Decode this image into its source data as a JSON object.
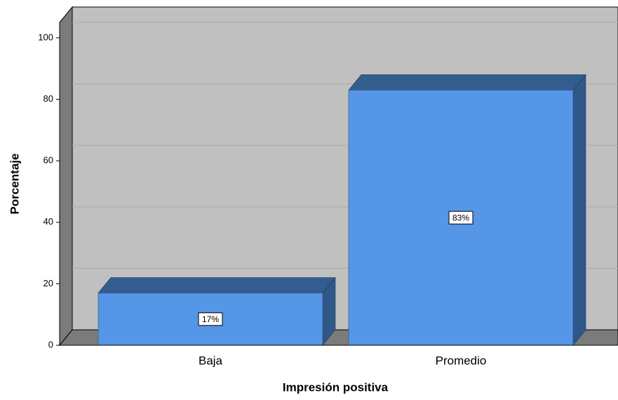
{
  "chart_data": {
    "type": "bar3d",
    "x_label": "Impresión positiva",
    "y_label": "Porcentaje",
    "categories": [
      "Baja",
      "Promedio"
    ],
    "values": [
      17,
      83
    ],
    "value_labels": [
      "17%",
      "83%"
    ],
    "color": "#5596e6",
    "ylim": [
      0,
      105
    ],
    "yticks": [
      0,
      20,
      40,
      60,
      80,
      100
    ],
    "grid": true
  }
}
